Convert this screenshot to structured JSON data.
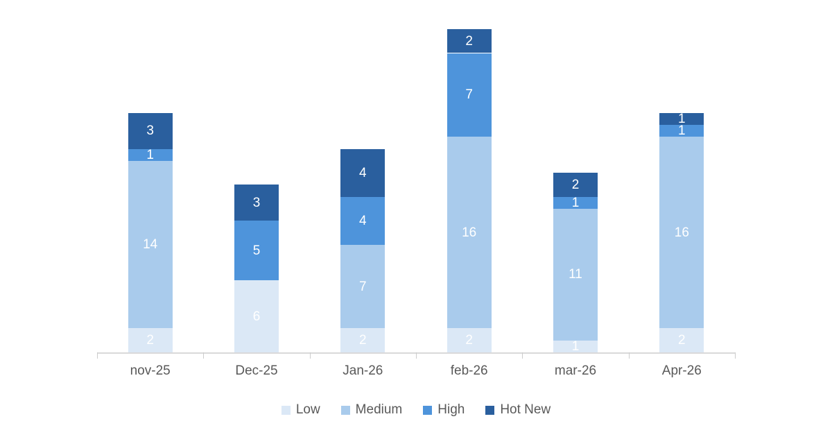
{
  "chart_data": {
    "type": "bar",
    "stacked": true,
    "title": "",
    "xlabel": "",
    "ylabel": "",
    "grid": false,
    "value_labels_shown": true,
    "legend_position": "bottom",
    "categories": [
      "nov-25",
      "Dec-25",
      "Jan-26",
      "feb-26",
      "mar-26",
      "Apr-26"
    ],
    "series": [
      {
        "name": "Low",
        "color": "#DBE8F6",
        "values": [
          2,
          6,
          2,
          2,
          1,
          2
        ]
      },
      {
        "name": "Medium",
        "color": "#A9CBEC",
        "values": [
          14,
          0,
          7,
          16,
          11,
          16
        ]
      },
      {
        "name": "High",
        "color": "#4E94DB",
        "values": [
          1,
          5,
          4,
          7,
          1,
          1
        ]
      },
      {
        "name": "Hot New",
        "color": "#2A5F9E",
        "values": [
          3,
          3,
          4,
          2,
          2,
          1
        ]
      }
    ],
    "totals_by_category": [
      20,
      14,
      17,
      27,
      15,
      20
    ],
    "value_label_color": "#FFFFFF",
    "axis_color": "#D9D9D9",
    "tick_color": "#CCCCCC",
    "category_label_color": "#595959",
    "legend_label_color": "#595959",
    "background_color": "#FFFFFF"
  }
}
